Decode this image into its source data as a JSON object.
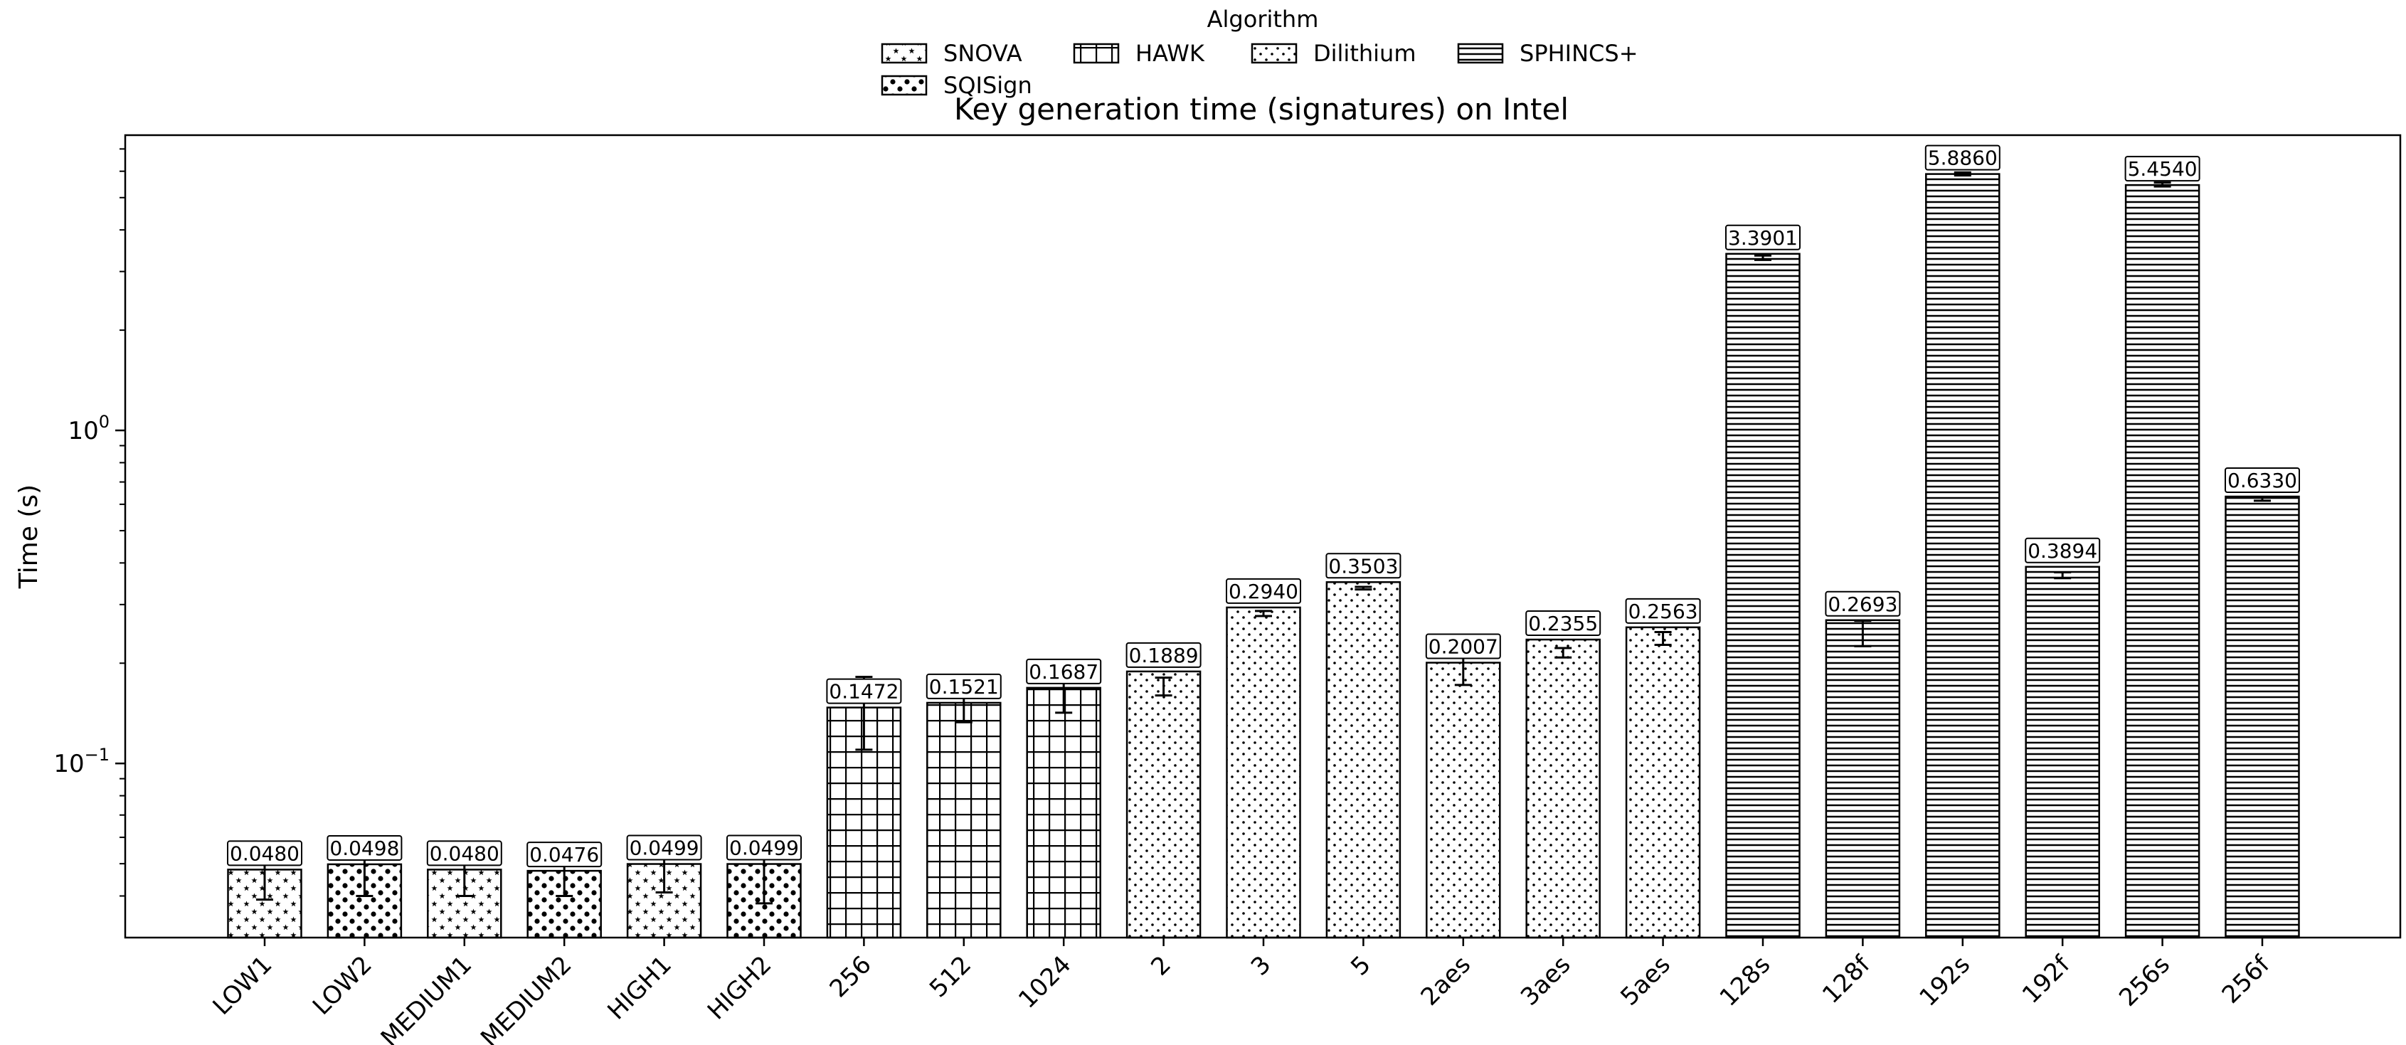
{
  "chart_data": {
    "type": "bar",
    "title": "Key generation time (signatures) on Intel",
    "xlabel": "",
    "ylabel": "Time (s)",
    "yscale": "log",
    "ylim": [
      0.03,
      7.7
    ],
    "yticks": [
      {
        "value": 0.1,
        "base": "10",
        "exp": "−1"
      },
      {
        "value": 1,
        "base": "10",
        "exp": "0"
      }
    ],
    "grid": false,
    "legend": {
      "title": "Algorithm",
      "placement": "top-center",
      "entries": [
        {
          "name": "SNOVA",
          "pattern": "stars"
        },
        {
          "name": "HAWK",
          "pattern": "grid"
        },
        {
          "name": "Dilithium",
          "pattern": "dots-small"
        },
        {
          "name": "SPHINCS+",
          "pattern": "hlines"
        },
        {
          "name": "SQISign",
          "pattern": "dots-large"
        }
      ]
    },
    "categories": [
      "LOW1",
      "LOW2",
      "MEDIUM1",
      "MEDIUM2",
      "HIGH1",
      "HIGH2",
      "256",
      "512",
      "1024",
      "2",
      "3",
      "5",
      "2aes",
      "3aes",
      "5aes",
      "128s",
      "128f",
      "192s",
      "192f",
      "256s",
      "256f"
    ],
    "values": [
      0.048,
      0.0498,
      0.048,
      0.0476,
      0.0499,
      0.0499,
      0.1472,
      0.1521,
      0.1687,
      0.1889,
      0.294,
      0.3503,
      0.2007,
      0.2355,
      0.2563,
      3.3901,
      0.2693,
      5.886,
      0.3894,
      5.454,
      0.633
    ],
    "value_labels": [
      "0.0480",
      "0.0498",
      "0.0480",
      "0.0476",
      "0.0499",
      "0.0499",
      "0.1472",
      "0.1521",
      "0.1687",
      "0.1889",
      "0.2940",
      "0.3503",
      "0.2007",
      "0.2355",
      "0.2563",
      "3.3901",
      "0.2693",
      "5.8860",
      "0.3894",
      "5.4540",
      "0.6330"
    ],
    "patterns": [
      "stars",
      "dots-large",
      "stars",
      "dots-large",
      "stars",
      "dots-large",
      "grid",
      "grid",
      "grid",
      "dots-small",
      "dots-small",
      "dots-small",
      "dots-small",
      "dots-small",
      "dots-small",
      "hlines",
      "hlines",
      "hlines",
      "hlines",
      "hlines",
      "hlines"
    ],
    "error_low": [
      0.039,
      0.04,
      0.04,
      0.04,
      0.041,
      0.038,
      0.11,
      0.133,
      0.142,
      0.16,
      0.277,
      0.333,
      0.172,
      0.208,
      0.227,
      3.25,
      0.225,
      5.83,
      0.36,
      5.4,
      0.615
    ],
    "error_high": [
      0.0575,
      0.0585,
      0.057,
      0.0555,
      0.059,
      0.0598,
      0.182,
      0.162,
      0.181,
      0.181,
      0.287,
      0.339,
      0.219,
      0.222,
      0.248,
      3.35,
      0.268,
      5.95,
      0.375,
      5.55,
      0.63
    ]
  }
}
